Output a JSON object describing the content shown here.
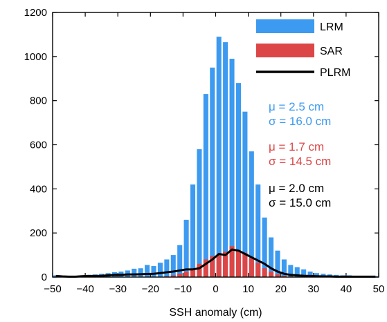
{
  "chart_data": {
    "type": "bar",
    "xlabel": "SSH anomaly (cm)",
    "ylabel": "",
    "xlim": [
      -50,
      50
    ],
    "ylim": [
      0,
      1200
    ],
    "xticks": [
      "−50",
      "−40",
      "−30",
      "−20",
      "−10",
      "0",
      "10",
      "20",
      "30",
      "40",
      "50"
    ],
    "yticks": [
      "0",
      "200",
      "400",
      "600",
      "800",
      "1000",
      "1200"
    ],
    "grid": false,
    "legend_position": "top-right",
    "bin_width": 2,
    "x": [
      -49,
      -47,
      -45,
      -43,
      -41,
      -39,
      -37,
      -35,
      -33,
      -31,
      -29,
      -27,
      -25,
      -23,
      -21,
      -19,
      -17,
      -15,
      -13,
      -11,
      -9,
      -7,
      -5,
      -3,
      -1,
      1,
      3,
      5,
      7,
      9,
      11,
      13,
      15,
      17,
      19,
      21,
      23,
      25,
      27,
      29,
      31,
      33,
      35,
      37,
      39,
      41,
      43,
      45,
      47,
      49
    ],
    "series": [
      {
        "name": "LRM",
        "kind": "bar",
        "color": "#3c9af0",
        "values": [
          8,
          5,
          6,
          5,
          8,
          10,
          12,
          15,
          18,
          22,
          25,
          30,
          38,
          40,
          55,
          50,
          65,
          80,
          100,
          145,
          260,
          420,
          580,
          830,
          950,
          1090,
          1065,
          990,
          880,
          750,
          570,
          420,
          270,
          180,
          120,
          80,
          55,
          45,
          35,
          25,
          18,
          15,
          12,
          10,
          8,
          8,
          6,
          5,
          5,
          5
        ]
      },
      {
        "name": "SAR",
        "kind": "bar",
        "color": "#dc4646",
        "values": [
          0,
          0,
          0,
          0,
          0,
          0,
          0,
          0,
          0,
          0,
          0,
          0,
          0,
          0,
          0,
          0,
          0,
          4,
          8,
          15,
          25,
          40,
          60,
          80,
          95,
          105,
          115,
          140,
          120,
          110,
          85,
          65,
          40,
          25,
          12,
          6,
          3,
          0,
          0,
          0,
          0,
          0,
          0,
          0,
          0,
          0,
          0,
          0,
          0,
          0
        ]
      },
      {
        "name": "PLRM",
        "kind": "line",
        "color": "#000000",
        "values": [
          5,
          3,
          2,
          2,
          4,
          5,
          5,
          6,
          8,
          10,
          10,
          12,
          12,
          13,
          14,
          15,
          18,
          22,
          25,
          30,
          35,
          35,
          40,
          60,
          80,
          105,
          100,
          125,
          120,
          105,
          90,
          75,
          60,
          40,
          25,
          15,
          10,
          8,
          6,
          5,
          4,
          3,
          3,
          2,
          2,
          2,
          2,
          2,
          2,
          2
        ]
      }
    ],
    "annotations": [
      {
        "lines": [
          "μ = 2.5 cm",
          "σ = 16.0 cm"
        ],
        "color": "#3c9af0"
      },
      {
        "lines": [
          "μ = 1.7 cm",
          "σ = 14.5 cm"
        ],
        "color": "#dc4646"
      },
      {
        "lines": [
          "μ = 2.0 cm",
          "σ = 15.0 cm"
        ],
        "color": "#000000"
      }
    ]
  }
}
